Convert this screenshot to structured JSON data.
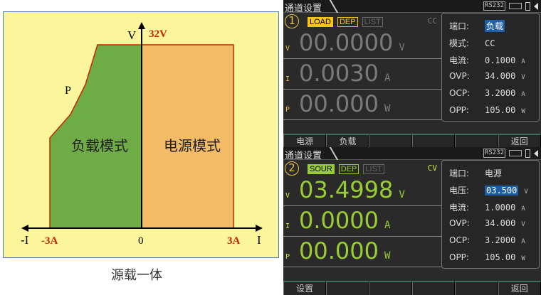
{
  "diagram": {
    "colors": {
      "background": "#fbf59b",
      "load_region": "#6fac46",
      "source_region": "#f4bb66",
      "boundary": "#cc2200"
    },
    "y_axis_label": "V",
    "x_axis_label": "I",
    "neg_x_label": "-I",
    "v_max_label": "32V",
    "i_min_label": "-3A",
    "i_max_label": "3A",
    "origin_label": "0",
    "power_label": "P",
    "load_mode": "负载模式",
    "source_mode": "电源模式",
    "caption": "源载一体"
  },
  "panels": [
    {
      "title": "通道设置",
      "status": {
        "rs": "RS232"
      },
      "channel": "1",
      "tags": [
        {
          "label": "LOAD",
          "active": true
        },
        {
          "label": "DEP",
          "active": true
        },
        {
          "label": "LIST",
          "active": false
        }
      ],
      "mode": "CC",
      "readings": [
        {
          "label": "V",
          "value": "00.0000",
          "unit": "V"
        },
        {
          "label": "I",
          "value": "0.0030",
          "unit": "A"
        },
        {
          "label": "P",
          "value": "00.000",
          "unit": "W"
        }
      ],
      "settings": [
        {
          "key": "端口:",
          "value": "负载",
          "highlight": true,
          "unit": ""
        },
        {
          "key": "模式:",
          "value": "CC",
          "unit": ""
        },
        {
          "key": "电流:",
          "value": "0.1000",
          "unit": "A"
        },
        {
          "key": "OVP:",
          "value": "34.000",
          "unit": "V"
        },
        {
          "key": "OCP:",
          "value": "3.2000",
          "unit": "A"
        },
        {
          "key": "OPP:",
          "value": "105.00",
          "unit": "W"
        }
      ],
      "buttons": [
        "电源",
        "负载",
        "",
        "",
        "",
        "返回"
      ]
    },
    {
      "title": "通道设置",
      "status": {
        "rs": "RS232"
      },
      "channel": "2",
      "tags": [
        {
          "label": "SOUR",
          "active": true
        },
        {
          "label": "DEP",
          "active": true
        },
        {
          "label": "LIST",
          "active": false
        }
      ],
      "mode": "CV",
      "readings": [
        {
          "label": "V",
          "value": "03.4998",
          "unit": "V"
        },
        {
          "label": "I",
          "value": "0.0000",
          "unit": "A"
        },
        {
          "label": "P",
          "value": "00.000",
          "unit": "W"
        }
      ],
      "settings": [
        {
          "key": "端口:",
          "value": "电源",
          "unit": ""
        },
        {
          "key": "电压:",
          "value": "03.500",
          "highlight": true,
          "unit": "V"
        },
        {
          "key": "电流:",
          "value": "1.0000",
          "unit": "A"
        },
        {
          "key": "OVP:",
          "value": "34.000",
          "unit": "V"
        },
        {
          "key": "OCP:",
          "value": "3.2000",
          "unit": "A"
        },
        {
          "key": "OPP:",
          "value": "105.00",
          "unit": "W"
        }
      ],
      "buttons": [
        "设置",
        "",
        "",
        "",
        "",
        "返回"
      ]
    }
  ]
}
